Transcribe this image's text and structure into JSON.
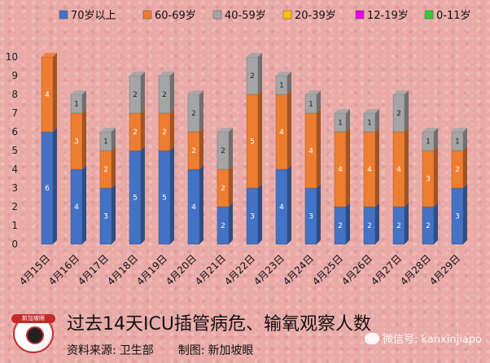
{
  "chart_data": {
    "type": "bar",
    "stacked": true,
    "categories": [
      "4月15日",
      "4月16日",
      "4月17日",
      "4月18日",
      "4月19日",
      "4月20日",
      "4月21日",
      "4月22日",
      "4月23日",
      "4月24日",
      "4月25日",
      "4月26日",
      "4月27日",
      "4月28日",
      "4月29日"
    ],
    "series": [
      {
        "name": "70岁以上",
        "color": "#4472c4",
        "values": [
          6,
          4,
          3,
          5,
          5,
          4,
          2,
          3,
          4,
          3,
          2,
          2,
          2,
          2,
          3
        ]
      },
      {
        "name": "60-69岁",
        "color": "#ed7d31",
        "values": [
          4,
          3,
          2,
          2,
          2,
          2,
          2,
          5,
          4,
          4,
          4,
          4,
          4,
          3,
          2
        ]
      },
      {
        "name": "40-59岁",
        "color": "#a5a5a5",
        "values": [
          0,
          1,
          1,
          2,
          2,
          2,
          2,
          2,
          1,
          1,
          1,
          1,
          2,
          1,
          1
        ]
      },
      {
        "name": "20-39岁",
        "color": "#ffc000",
        "values": [
          0,
          0,
          0,
          0,
          0,
          0,
          0,
          0,
          0,
          0,
          0,
          0,
          0,
          0,
          0
        ]
      },
      {
        "name": "12-19岁",
        "color": "#e600e6",
        "values": [
          0,
          0,
          0,
          0,
          0,
          0,
          0,
          0,
          0,
          0,
          0,
          0,
          0,
          0,
          0
        ]
      },
      {
        "name": "0-11岁",
        "color": "#33cc33",
        "values": [
          0,
          0,
          0,
          0,
          0,
          0,
          0,
          0,
          0,
          0,
          0,
          0,
          0,
          0,
          0
        ]
      }
    ],
    "ylim": [
      0,
      10
    ],
    "yticks": [
      "0",
      "1",
      "2",
      "3",
      "4",
      "5",
      "6",
      "7",
      "8",
      "9",
      "10"
    ],
    "legend": "top",
    "grid": false
  },
  "footer": {
    "title": "过去14天ICU插管病危、输氧观察人数",
    "source_label": "资料来源:",
    "source_value": "卫生部",
    "made_label": "制图:",
    "made_value": "新加坡眼",
    "watermark": "微信号: kanxinjiapo",
    "logo_text": "新加坡眼"
  }
}
